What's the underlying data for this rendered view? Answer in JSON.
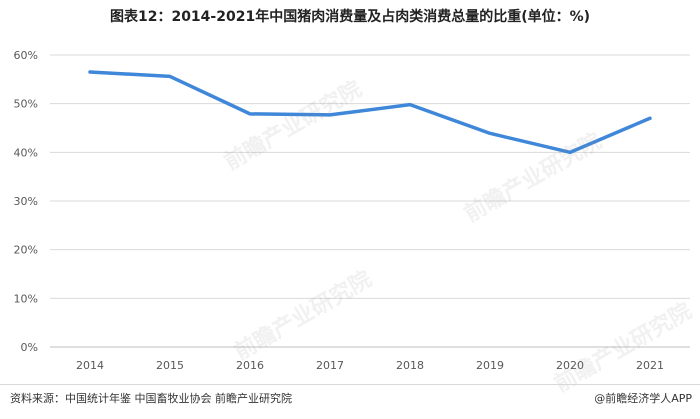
{
  "header": {
    "title": "图表12：2014-2021年中国猪肉消费量及占肉类消费总量的比重(单位：%)"
  },
  "watermark": {
    "text": "前瞻产业研究院"
  },
  "footer": {
    "source": "资料来源：中国统计年鉴 中国畜牧业协会 前瞻产业研究院",
    "brand": "@前瞻经济学人APP"
  },
  "colors": {
    "line": "#3f87d9",
    "grid": "#d9d9d9",
    "axis": "#bfbfbf",
    "tick_text": "#595959"
  },
  "chart_data": {
    "type": "line",
    "title": "图表12：2014-2021年中国猪肉消费量及占肉类消费总量的比重(单位：%)",
    "categories": [
      "2014",
      "2015",
      "2016",
      "2017",
      "2018",
      "2019",
      "2020",
      "2021"
    ],
    "series": [
      {
        "values": [
          56.5,
          55.6,
          47.9,
          47.7,
          49.8,
          43.9,
          40.0,
          47.0
        ]
      }
    ],
    "yticks": [
      "0%",
      "10%",
      "20%",
      "30%",
      "40%",
      "50%",
      "60%"
    ],
    "ylim": [
      0,
      60
    ],
    "grid": true,
    "legend": "none",
    "xlabel": "",
    "ylabel": ""
  }
}
